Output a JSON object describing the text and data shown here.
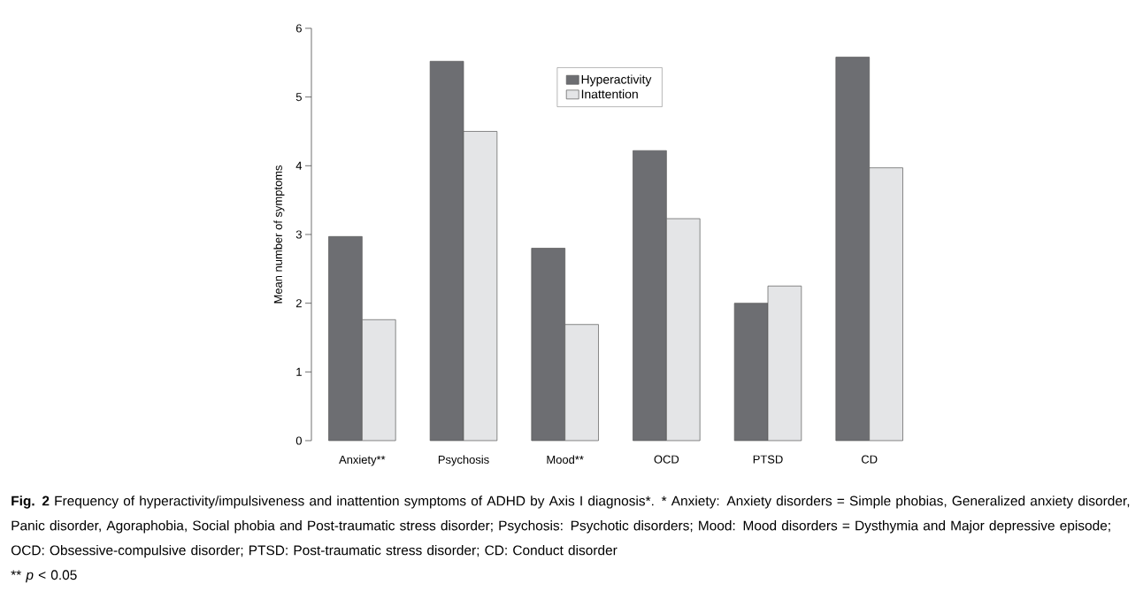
{
  "chart_data": {
    "type": "bar",
    "ylabel": "Mean number of symptoms",
    "categories": [
      "Anxiety**",
      "Psychosis",
      "Mood**",
      "OCD",
      "PTSD",
      "CD"
    ],
    "series": [
      {
        "name": "Hyperactivity",
        "color": "#6d6e72",
        "values": [
          2.97,
          5.52,
          2.8,
          4.22,
          2.0,
          5.58
        ]
      },
      {
        "name": "Inattention",
        "color": "#e4e5e7",
        "values": [
          1.76,
          4.5,
          1.69,
          3.23,
          2.25,
          3.97
        ]
      }
    ],
    "ylim": [
      0,
      6
    ],
    "yticks": [
      0,
      1,
      2,
      3,
      4,
      5,
      6
    ],
    "legend": "top",
    "annotations": [
      "**Fig. 2** Frequency of hyperactivity/impulsiveness and inattention symptoms of ADHD by Axis I diagnosis*. * Anxiety: Anxiety disorders = Simple phobias, Generalized anxiety disorder, Panic disorder, Agoraphobia, Social phobia and Post-traumatic stress disorder; Psychosis: Psychotic disorders; Mood: Mood disorders = Dysthymia and Major depressive episode; OCD: Obsessive-compulsive disorder; PTSD: Post-traumatic stress disorder; CD: Conduct disorder",
      "** *p* < 0.05"
    ]
  }
}
